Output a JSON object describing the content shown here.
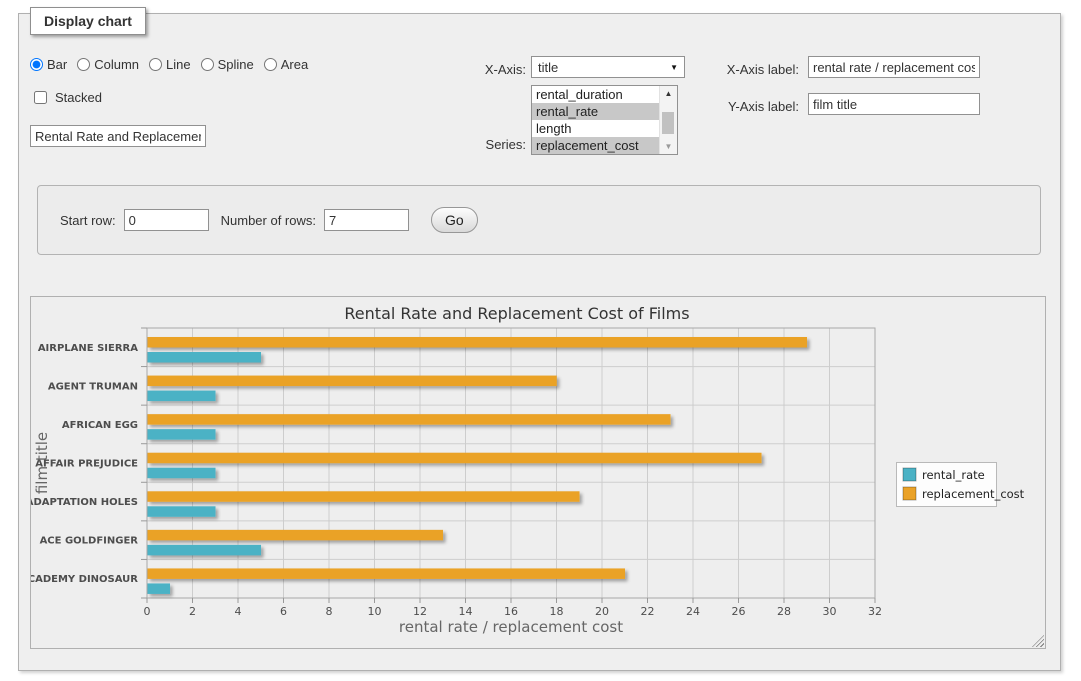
{
  "panel": {
    "title": "Display chart"
  },
  "form": {
    "chart_types": {
      "options": [
        "Bar",
        "Column",
        "Line",
        "Spline",
        "Area"
      ],
      "selected": "Bar"
    },
    "stacked": {
      "label": "Stacked",
      "checked": false
    },
    "chart_title_input": {
      "value": "Rental Rate and Replacemer"
    },
    "x_axis": {
      "label": "X-Axis:",
      "selected": "title"
    },
    "series": {
      "label": "Series:",
      "options": [
        {
          "label": "rental_duration",
          "selected": false
        },
        {
          "label": "rental_rate",
          "selected": true
        },
        {
          "label": "length",
          "selected": false
        },
        {
          "label": "replacement_cost",
          "selected": true
        }
      ]
    },
    "x_axis_label": {
      "label": "X-Axis label:",
      "value": "rental rate / replacement cost"
    },
    "y_axis_label": {
      "label": "Y-Axis label:",
      "value": "film title"
    },
    "rows": {
      "start_label": "Start row:",
      "start_value": "0",
      "count_label": "Number of rows:",
      "count_value": "7",
      "go_label": "Go"
    }
  },
  "icons": {
    "select_arrow": "▼",
    "scroll_up": "▲",
    "scroll_down": "▼"
  },
  "chart_data": {
    "type": "bar",
    "orientation": "horizontal",
    "title": "Rental Rate and Replacement Cost of Films",
    "xlabel": "rental rate / replacement cost",
    "ylabel": "film title",
    "categories": [
      "AIRPLANE SIERRA",
      "AGENT TRUMAN",
      "AFRICAN EGG",
      "AFFAIR PREJUDICE",
      "ADAPTATION HOLES",
      "ACE GOLDFINGER",
      "ACADEMY DINOSAUR"
    ],
    "series": [
      {
        "name": "rental_rate",
        "color": "#4bb2c5",
        "values": [
          4.99,
          2.99,
          2.99,
          2.99,
          2.99,
          4.99,
          0.99
        ]
      },
      {
        "name": "replacement_cost",
        "color": "#eaa228",
        "values": [
          28.99,
          17.99,
          22.99,
          26.99,
          18.99,
          12.99,
          20.99
        ]
      }
    ],
    "xlim": [
      0,
      32
    ],
    "x_tick_step": 2,
    "grid": true,
    "legend_position": "right",
    "colors": {
      "grid_line": "#cdcdcd",
      "plot_border": "#a8a8a8",
      "text": "#4d4d4d",
      "axis_title": "#666666"
    }
  }
}
